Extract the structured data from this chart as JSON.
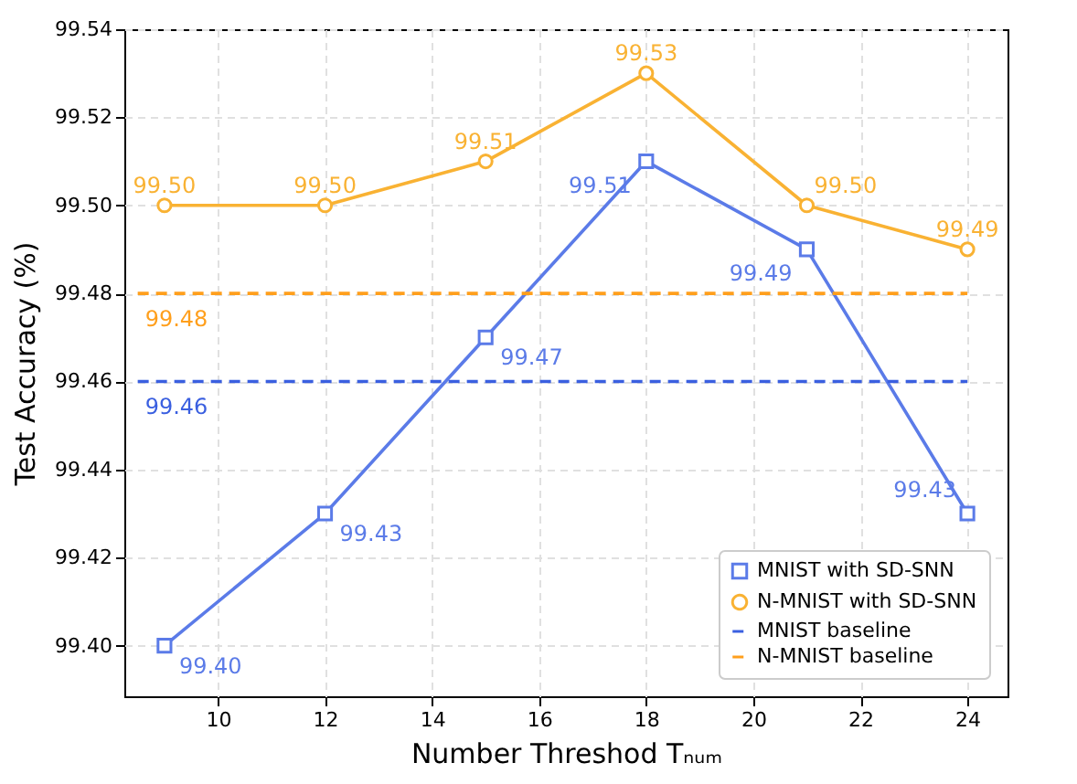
{
  "chart_data": {
    "type": "line",
    "xlabel": "Number Threshod Tₙᵤₘ",
    "ylabel": "Test Accuracy (%)",
    "xlim": [
      8.25,
      24.75
    ],
    "xticks": [
      10,
      12,
      14,
      16,
      18,
      20,
      22,
      24
    ],
    "ylim": [
      99.3885,
      99.54
    ],
    "yticks": [
      {
        "value": 99.4,
        "label": "99.40"
      },
      99.42,
      99.44,
      99.46,
      99.48,
      {
        "value": 99.5,
        "label": "99.50"
      },
      99.52,
      99.54
    ],
    "grid": true,
    "legend": "bottom right",
    "series": [
      {
        "name": "MNIST with SD-SNN",
        "color": "#5b7be8",
        "marker": "square",
        "line_style": "solid",
        "x": [
          9,
          12,
          15,
          18,
          21,
          24
        ],
        "values": [
          99.4,
          99.43,
          99.47,
          99.51,
          99.49,
          99.43
        ],
        "value_labels": [
          "99.40",
          "99.43",
          "99.47",
          "99.51",
          "99.49",
          "99.43"
        ]
      },
      {
        "name": "N-MNIST with SD-SNN",
        "color": "#f9b233",
        "marker": "circle",
        "line_style": "solid",
        "x": [
          9,
          12,
          15,
          18,
          21,
          24
        ],
        "values": [
          99.5,
          99.5,
          99.51,
          99.53,
          99.5,
          99.49
        ],
        "value_labels": [
          "99.50",
          "99.50",
          "99.51",
          "99.53",
          "99.50",
          "99.49"
        ]
      },
      {
        "name": "MNIST baseline",
        "color": "#3a5fe0",
        "marker": "none",
        "line_style": "dashed",
        "x": [
          8.5,
          24
        ],
        "values": [
          99.46,
          99.46
        ],
        "value_labels": [
          "99.46",
          null
        ]
      },
      {
        "name": "N-MNIST baseline",
        "color": "#ff9f1c",
        "marker": "none",
        "line_style": "dashed",
        "x": [
          8.5,
          24
        ],
        "values": [
          99.48,
          99.48
        ],
        "value_labels": [
          "99.48",
          null
        ]
      }
    ]
  }
}
